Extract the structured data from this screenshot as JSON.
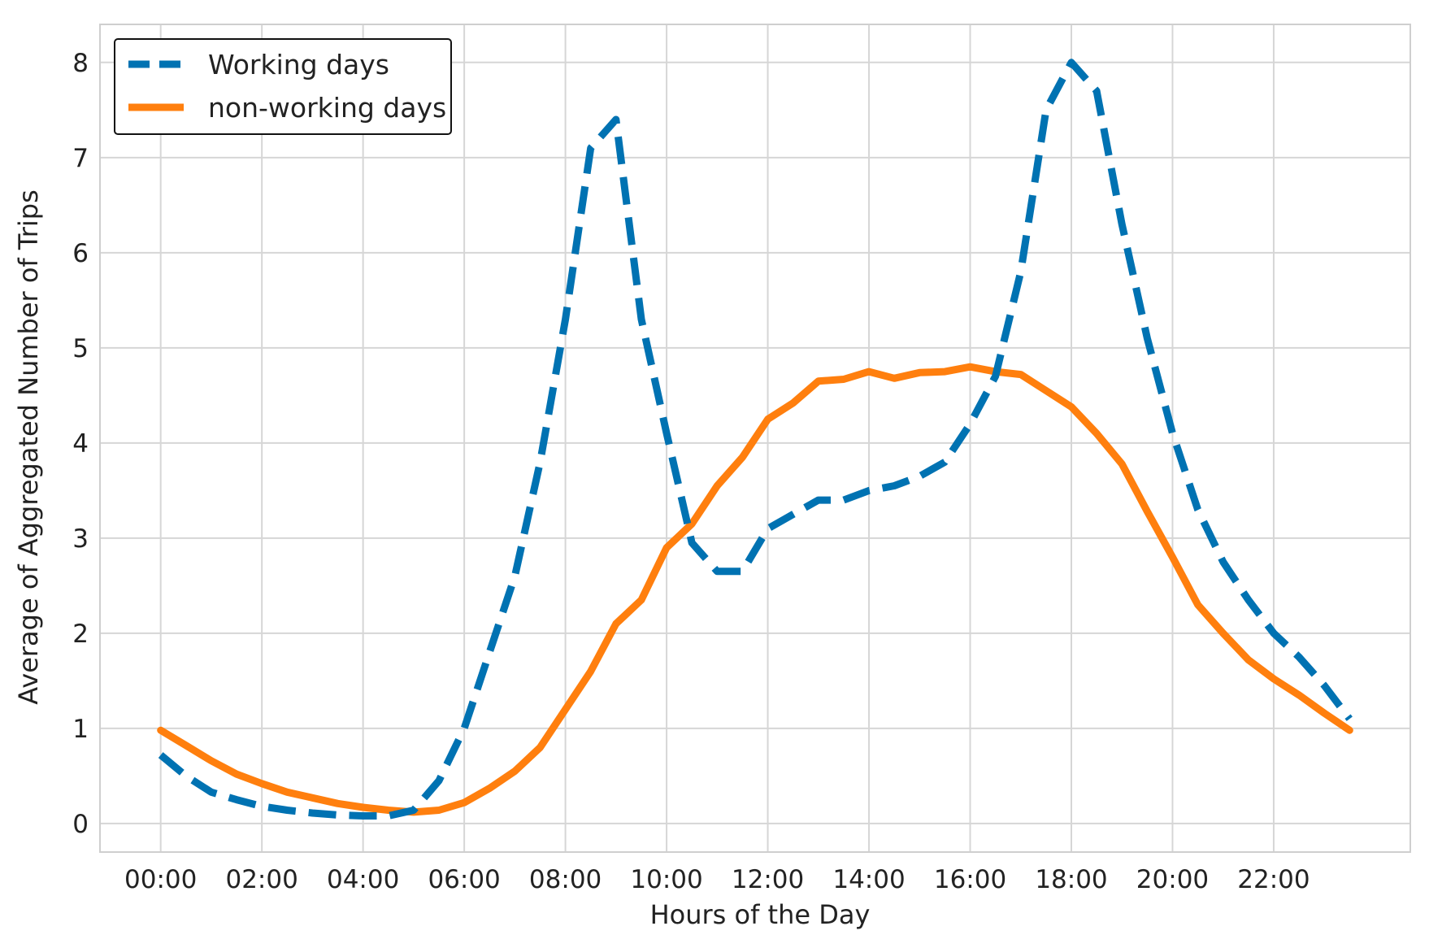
{
  "chart_data": {
    "type": "line",
    "xlabel": "Hours of the Day",
    "ylabel": "Average of Aggregated Number of Trips",
    "x_ticks": [
      "00:00",
      "02:00",
      "04:00",
      "06:00",
      "08:00",
      "10:00",
      "12:00",
      "14:00",
      "16:00",
      "18:00",
      "20:00",
      "22:00"
    ],
    "y_ticks": [
      "0",
      "1",
      "2",
      "3",
      "4",
      "5",
      "6",
      "7",
      "8"
    ],
    "xlim": [
      -1.2,
      24.7
    ],
    "ylim": [
      -0.3,
      8.4
    ],
    "grid": true,
    "legend_position": "top-left",
    "x": [
      0,
      0.5,
      1,
      1.5,
      2,
      2.5,
      3,
      3.5,
      4,
      4.5,
      5,
      5.5,
      6,
      6.5,
      7,
      7.5,
      8,
      8.5,
      9,
      9.5,
      10,
      10.5,
      11,
      11.5,
      12,
      12.5,
      13,
      13.5,
      14,
      14.5,
      15,
      15.5,
      16,
      16.5,
      17,
      17.5,
      18,
      18.5,
      19,
      19.5,
      20,
      20.5,
      21,
      21.5,
      22,
      22.5,
      23,
      23.5
    ],
    "series": [
      {
        "name": "Working days",
        "style": "dashed",
        "color": "#0072B2",
        "values": [
          0.72,
          0.5,
          0.33,
          0.25,
          0.18,
          0.14,
          0.11,
          0.09,
          0.08,
          0.08,
          0.14,
          0.45,
          1.0,
          1.8,
          2.6,
          3.8,
          5.3,
          7.1,
          7.4,
          5.3,
          4.1,
          2.95,
          2.65,
          2.65,
          3.1,
          3.25,
          3.4,
          3.4,
          3.5,
          3.55,
          3.65,
          3.8,
          4.2,
          4.7,
          5.8,
          7.5,
          8.0,
          7.7,
          6.3,
          5.1,
          4.1,
          3.3,
          2.75,
          2.35,
          2.0,
          1.75,
          1.45,
          1.1
        ]
      },
      {
        "name": "non-working days",
        "style": "solid",
        "color": "#FF7F0E",
        "values": [
          0.98,
          0.82,
          0.66,
          0.52,
          0.42,
          0.33,
          0.27,
          0.21,
          0.17,
          0.14,
          0.12,
          0.14,
          0.22,
          0.37,
          0.55,
          0.8,
          1.2,
          1.6,
          2.1,
          2.35,
          2.9,
          3.15,
          3.55,
          3.85,
          4.25,
          4.42,
          4.65,
          4.67,
          4.75,
          4.68,
          4.74,
          4.75,
          4.8,
          4.75,
          4.72,
          4.55,
          4.38,
          4.1,
          3.78,
          3.28,
          2.8,
          2.3,
          2.0,
          1.72,
          1.52,
          1.35,
          1.16,
          0.98
        ]
      }
    ]
  }
}
